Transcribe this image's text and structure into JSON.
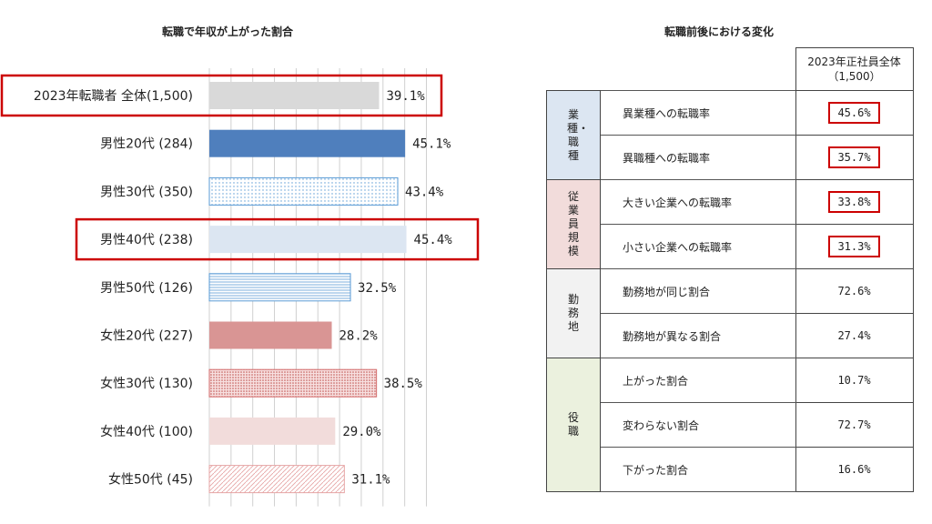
{
  "left": {
    "title": "転職で年収が上がった割合"
  },
  "chart_data": {
    "type": "bar",
    "orientation": "horizontal",
    "title": "転職で年収が上がった割合",
    "xlim": [
      0,
      50
    ],
    "grid": true,
    "categories": [
      "2023年転職者 全体(1,500)",
      "男性20代 (284)",
      "男性30代 (350)",
      "男性40代 (238)",
      "男性50代 (126)",
      "女性20代 (227)",
      "女性30代 (130)",
      "女性40代 (100)",
      "女性50代 (45)"
    ],
    "values": [
      39.1,
      45.1,
      43.4,
      45.4,
      32.5,
      28.2,
      38.5,
      29.0,
      31.1
    ],
    "value_labels": [
      "39.1%",
      "45.1%",
      "43.4%",
      "45.4%",
      "32.5%",
      "28.2%",
      "38.5%",
      "29.0%",
      "31.1%"
    ],
    "bar_styles": [
      "solid",
      "solid",
      "dotted",
      "solid",
      "horizontal-lines",
      "solid",
      "dotted",
      "solid",
      "diagonal-lines"
    ],
    "bar_colors": [
      "#d9d9d9",
      "#4f7fbd",
      "#5a9bd5",
      "#dce6f2",
      "#5a9bd5",
      "#d99594",
      "#d26a6a",
      "#f2dcdb",
      "#e6a6a6"
    ],
    "highlighted": [
      0,
      3
    ],
    "highlight_color": "#cc0000"
  },
  "right": {
    "title": "転職前後における変化",
    "column_header": [
      "2023年正社員全体",
      "（1,500）"
    ],
    "groups": [
      {
        "name": "業種・職種",
        "bg": "#dce6f2",
        "rows": [
          {
            "label": "異業種への転職率",
            "value": "45.6%",
            "highlight": true
          },
          {
            "label": "異職種への転職率",
            "value": "35.7%",
            "highlight": true
          }
        ]
      },
      {
        "name": "従業員規模",
        "bg": "#f2dcdb",
        "rows": [
          {
            "label": "大きい企業への転職率",
            "value": "33.8%",
            "highlight": true
          },
          {
            "label": "小さい企業への転職率",
            "value": "31.3%",
            "highlight": true
          }
        ]
      },
      {
        "name": "勤務地",
        "bg": "#f2f2f2",
        "rows": [
          {
            "label": "勤務地が同じ割合",
            "value": "72.6%",
            "highlight": false
          },
          {
            "label": "勤務地が異なる割合",
            "value": "27.4%",
            "highlight": false
          }
        ]
      },
      {
        "name": "役職",
        "bg": "#ebf1de",
        "rows": [
          {
            "label": "上がった割合",
            "value": "10.7%",
            "highlight": false
          },
          {
            "label": "変わらない割合",
            "value": "72.7%",
            "highlight": false
          },
          {
            "label": "下がった割合",
            "value": "16.6%",
            "highlight": false
          }
        ]
      }
    ],
    "highlight_color": "#cc0000"
  }
}
